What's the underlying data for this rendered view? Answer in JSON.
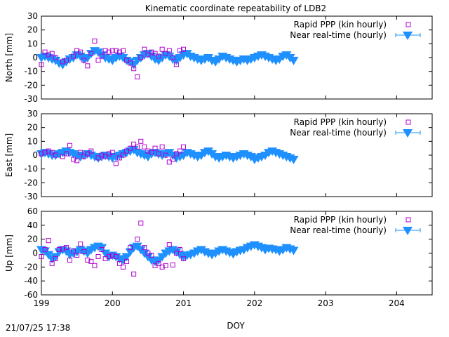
{
  "figure": {
    "title": "Kinematic coordinate repeatability of LDB2",
    "timestamp": "21/07/25 17:38"
  },
  "colors": {
    "ppp": "#b000d0",
    "nrt": "#1e90ff",
    "axis": "#000000"
  },
  "chart_data": [
    {
      "type": "scatter",
      "ylabel": "North [mm]",
      "xlim": [
        199,
        204.5
      ],
      "ylim": [
        -30,
        30
      ],
      "yticks": [
        -30,
        -20,
        -10,
        0,
        10,
        20,
        30
      ],
      "legend": "top-right",
      "series": [
        {
          "name": "Rapid PPP (kin hourly)",
          "marker": "open-square",
          "x": [
            199.0,
            199.05,
            199.1,
            199.15,
            199.2,
            199.3,
            199.35,
            199.45,
            199.5,
            199.55,
            199.6,
            199.65,
            199.7,
            199.75,
            199.8,
            199.85,
            199.9,
            199.95,
            200.0,
            200.05,
            200.1,
            200.15,
            200.2,
            200.25,
            200.3,
            200.35,
            200.4,
            200.45,
            200.5,
            200.55,
            200.6,
            200.65,
            200.7,
            200.75,
            200.8,
            200.85,
            200.9,
            200.95,
            201.0
          ],
          "y": [
            -5,
            4,
            2,
            3,
            0,
            -3,
            -2,
            1,
            5,
            4,
            -2,
            -6,
            3,
            12,
            -2,
            1,
            5,
            4,
            5,
            5,
            4,
            5,
            -2,
            -4,
            -8,
            -14,
            0,
            6,
            2,
            4,
            3,
            1,
            6,
            3,
            5,
            0,
            -5,
            5,
            6
          ]
        },
        {
          "name": "Near real-time (hourly)",
          "marker": "filled-triangle-down",
          "x": [
            199.0,
            199.05,
            199.1,
            199.15,
            199.2,
            199.25,
            199.3,
            199.35,
            199.4,
            199.45,
            199.5,
            199.55,
            199.6,
            199.65,
            199.7,
            199.75,
            199.8,
            199.85,
            199.9,
            199.95,
            200.0,
            200.05,
            200.1,
            200.15,
            200.2,
            200.25,
            200.3,
            200.35,
            200.4,
            200.45,
            200.5,
            200.55,
            200.6,
            200.65,
            200.7,
            200.75,
            200.8,
            200.85,
            200.9,
            200.95,
            201.0,
            201.05,
            201.1,
            201.15,
            201.2,
            201.25,
            201.3,
            201.35,
            201.4,
            201.45,
            201.5,
            201.55,
            201.6,
            201.65,
            201.7,
            201.75,
            201.8,
            201.85,
            201.9,
            201.95,
            202.0,
            202.05,
            202.1,
            202.15,
            202.2,
            202.25,
            202.3,
            202.35,
            202.4,
            202.45,
            202.5,
            202.55
          ],
          "y": [
            0,
            1,
            0,
            -1,
            -2,
            -4,
            -5,
            -3,
            -1,
            0,
            2,
            1,
            -1,
            0,
            3,
            5,
            4,
            2,
            0,
            -1,
            -2,
            0,
            1,
            0,
            -2,
            -3,
            -5,
            -2,
            0,
            2,
            3,
            1,
            -1,
            -2,
            0,
            2,
            1,
            -1,
            -2,
            0,
            2,
            3,
            1,
            0,
            -1,
            -2,
            -1,
            0,
            -2,
            -3,
            -1,
            1,
            0,
            -1,
            -2,
            -3,
            -2,
            -1,
            -2,
            -1,
            0,
            1,
            2,
            1,
            0,
            -1,
            -2,
            -1,
            1,
            2,
            0,
            -2
          ]
        }
      ]
    },
    {
      "type": "scatter",
      "ylabel": "East [mm]",
      "xlim": [
        199,
        204.5
      ],
      "ylim": [
        -30,
        30
      ],
      "yticks": [
        -30,
        -20,
        -10,
        0,
        10,
        20,
        30
      ],
      "legend": "top-right",
      "series": [
        {
          "name": "Rapid PPP (kin hourly)",
          "marker": "open-square",
          "x": [
            199.0,
            199.05,
            199.1,
            199.15,
            199.2,
            199.3,
            199.35,
            199.4,
            199.45,
            199.5,
            199.55,
            199.6,
            199.65,
            199.7,
            199.8,
            199.85,
            199.9,
            199.95,
            200.0,
            200.05,
            200.1,
            200.15,
            200.2,
            200.25,
            200.3,
            200.35,
            200.4,
            200.45,
            200.5,
            200.55,
            200.6,
            200.65,
            200.7,
            200.75,
            200.8,
            200.85,
            200.9,
            200.95,
            201.0
          ],
          "y": [
            1,
            2,
            3,
            2,
            0,
            -1,
            1,
            7,
            -3,
            -4,
            2,
            -1,
            1,
            3,
            -2,
            0,
            -1,
            1,
            2,
            -6,
            -2,
            0,
            3,
            5,
            8,
            6,
            10,
            6,
            3,
            2,
            5,
            1,
            6,
            0,
            -5,
            -3,
            1,
            3,
            6
          ]
        },
        {
          "name": "Near real-time (hourly)",
          "marker": "filled-triangle-down",
          "x": [
            199.0,
            199.05,
            199.1,
            199.15,
            199.2,
            199.25,
            199.3,
            199.35,
            199.4,
            199.45,
            199.5,
            199.55,
            199.6,
            199.65,
            199.7,
            199.75,
            199.8,
            199.85,
            199.9,
            199.95,
            200.0,
            200.05,
            200.1,
            200.15,
            200.2,
            200.25,
            200.3,
            200.35,
            200.4,
            200.45,
            200.5,
            200.55,
            200.6,
            200.65,
            200.7,
            200.75,
            200.8,
            200.85,
            200.9,
            200.95,
            201.0,
            201.05,
            201.1,
            201.15,
            201.2,
            201.25,
            201.3,
            201.35,
            201.4,
            201.45,
            201.5,
            201.55,
            201.6,
            201.65,
            201.7,
            201.75,
            201.8,
            201.85,
            201.9,
            201.95,
            202.0,
            202.05,
            202.1,
            202.15,
            202.2,
            202.25,
            202.3,
            202.35,
            202.4,
            202.45,
            202.5,
            202.55
          ],
          "y": [
            1,
            2,
            1,
            0,
            0,
            1,
            2,
            3,
            2,
            1,
            0,
            -1,
            0,
            1,
            0,
            -1,
            -2,
            -1,
            0,
            -1,
            -2,
            -1,
            0,
            1,
            2,
            3,
            4,
            2,
            1,
            0,
            -1,
            1,
            2,
            1,
            0,
            1,
            2,
            0,
            -2,
            -1,
            0,
            2,
            1,
            0,
            -1,
            0,
            2,
            3,
            1,
            -1,
            -2,
            -1,
            0,
            -1,
            -2,
            -1,
            0,
            1,
            0,
            -1,
            -3,
            -2,
            -1,
            0,
            2,
            3,
            2,
            1,
            0,
            -1,
            -2,
            -3
          ]
        }
      ]
    },
    {
      "type": "scatter",
      "ylabel": "Up [mm]",
      "xlabel": "DOY",
      "xlim": [
        199,
        204.5
      ],
      "ylim": [
        -60,
        60
      ],
      "yticks": [
        -60,
        -40,
        -20,
        0,
        20,
        40,
        60
      ],
      "xticks": [
        199,
        200,
        201,
        202,
        203,
        204
      ],
      "legend": "top-right",
      "series": [
        {
          "name": "Rapid PPP (kin hourly)",
          "marker": "open-square",
          "x": [
            199.0,
            199.05,
            199.1,
            199.15,
            199.2,
            199.25,
            199.3,
            199.35,
            199.4,
            199.45,
            199.5,
            199.55,
            199.6,
            199.65,
            199.7,
            199.75,
            199.8,
            199.85,
            199.9,
            199.95,
            200.0,
            200.05,
            200.1,
            200.15,
            200.2,
            200.25,
            200.3,
            200.35,
            200.4,
            200.45,
            200.5,
            200.55,
            200.6,
            200.65,
            200.7,
            200.75,
            200.8,
            200.85,
            200.9,
            200.95,
            201.0
          ],
          "y": [
            -5,
            5,
            18,
            -15,
            -8,
            5,
            6,
            8,
            -10,
            3,
            -3,
            13,
            2,
            -10,
            -12,
            -18,
            -5,
            5,
            -8,
            -5,
            -3,
            -5,
            -15,
            -20,
            -12,
            8,
            -30,
            20,
            43,
            8,
            0,
            -3,
            -18,
            -15,
            -20,
            -18,
            12,
            -17,
            0,
            5,
            -8
          ]
        },
        {
          "name": "Near real-time (hourly)",
          "marker": "filled-triangle-down",
          "x": [
            199.0,
            199.05,
            199.1,
            199.15,
            199.2,
            199.25,
            199.3,
            199.35,
            199.4,
            199.45,
            199.5,
            199.55,
            199.6,
            199.65,
            199.7,
            199.75,
            199.8,
            199.85,
            199.9,
            199.95,
            200.0,
            200.05,
            200.1,
            200.15,
            200.2,
            200.25,
            200.3,
            200.35,
            200.4,
            200.45,
            200.5,
            200.55,
            200.6,
            200.65,
            200.7,
            200.75,
            200.8,
            200.85,
            200.9,
            200.95,
            201.0,
            201.05,
            201.1,
            201.15,
            201.2,
            201.25,
            201.3,
            201.35,
            201.4,
            201.45,
            201.5,
            201.55,
            201.6,
            201.65,
            201.7,
            201.75,
            201.8,
            201.85,
            201.9,
            201.95,
            202.0,
            202.05,
            202.1,
            202.15,
            202.2,
            202.25,
            202.3,
            202.35,
            202.4,
            202.45,
            202.5,
            202.55
          ],
          "y": [
            5,
            3,
            -2,
            -8,
            -5,
            2,
            5,
            3,
            -2,
            0,
            2,
            5,
            3,
            0,
            5,
            8,
            10,
            8,
            0,
            -5,
            -3,
            -5,
            -8,
            -10,
            -5,
            2,
            8,
            10,
            5,
            0,
            -5,
            -10,
            -12,
            -10,
            -5,
            0,
            3,
            5,
            2,
            -2,
            -5,
            -3,
            -2,
            0,
            3,
            5,
            2,
            0,
            -2,
            0,
            3,
            5,
            3,
            1,
            -1,
            2,
            4,
            5,
            8,
            10,
            12,
            10,
            8,
            5,
            7,
            6,
            5,
            3,
            5,
            8,
            6,
            4
          ]
        }
      ]
    }
  ]
}
